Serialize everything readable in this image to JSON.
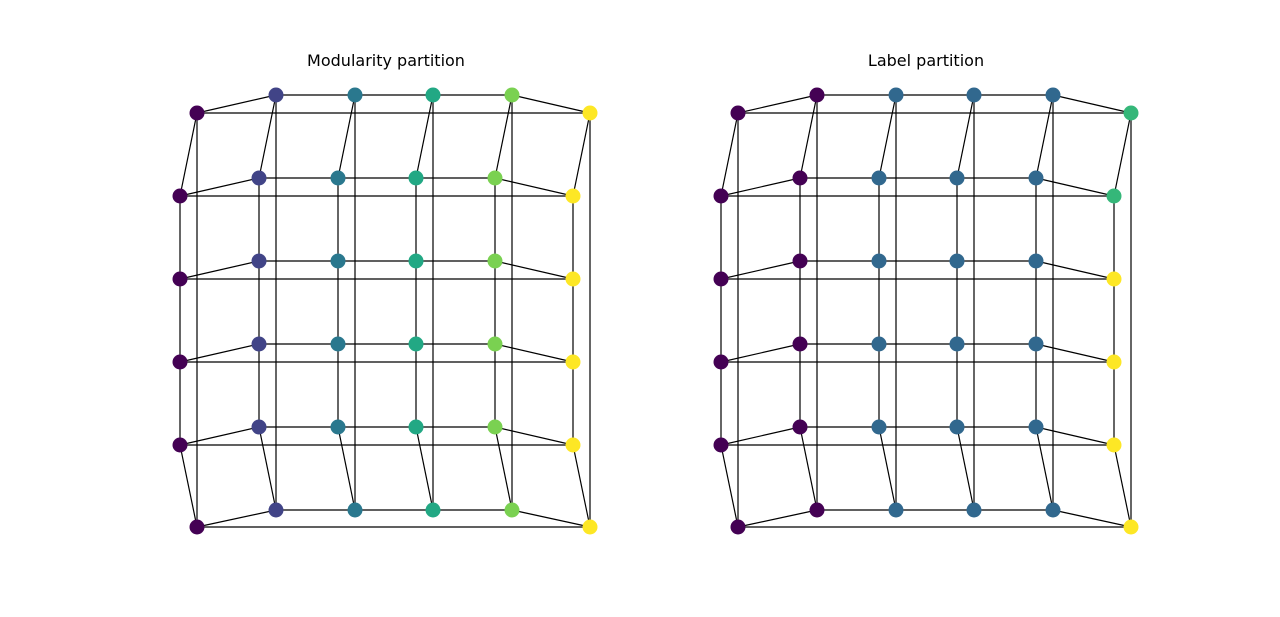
{
  "panels": [
    {
      "title": "Modularity partition",
      "palette": {
        "c0": "#440154",
        "c1": "#414487",
        "c2": "#2a788e",
        "c3": "#22a884",
        "c4": "#7ad151",
        "c5": "#fde725"
      },
      "columns": [
        [
          "c0",
          "c0",
          "c0",
          "c0",
          "c0",
          "c0"
        ],
        [
          "c1",
          "c1",
          "c1",
          "c1",
          "c1",
          "c1"
        ],
        [
          "c2",
          "c2",
          "c2",
          "c2",
          "c2",
          "c2"
        ],
        [
          "c3",
          "c3",
          "c3",
          "c3",
          "c3",
          "c3"
        ],
        [
          "c4",
          "c4",
          "c4",
          "c4",
          "c4",
          "c4"
        ],
        [
          "c5",
          "c5",
          "c5",
          "c5",
          "c5",
          "c5"
        ]
      ]
    },
    {
      "title": "Label partition",
      "palette": {
        "c0": "#440154",
        "c1": "#31688e",
        "c2": "#35b779",
        "c3": "#fde725"
      },
      "columns": [
        [
          "c0",
          "c0",
          "c0",
          "c0",
          "c0",
          "c0"
        ],
        [
          "c0",
          "c0",
          "c0",
          "c0",
          "c0",
          "c0"
        ],
        [
          "c1",
          "c1",
          "c1",
          "c1",
          "c1",
          "c1"
        ],
        [
          "c1",
          "c1",
          "c1",
          "c1",
          "c1",
          "c1"
        ],
        [
          "c1",
          "c1",
          "c1",
          "c1",
          "c1",
          "c1"
        ],
        [
          "c2",
          "c2",
          "c3",
          "c3",
          "c3",
          "c3"
        ]
      ]
    }
  ]
}
